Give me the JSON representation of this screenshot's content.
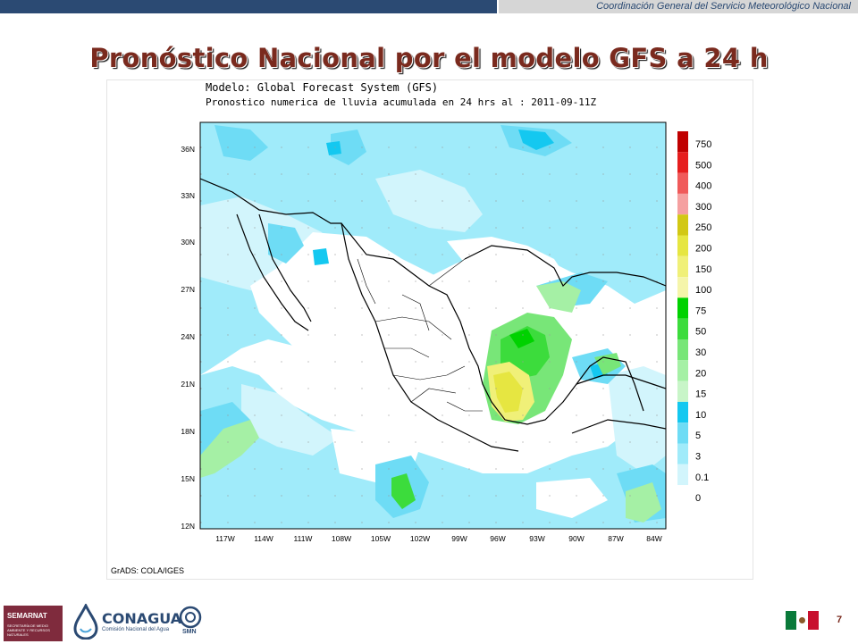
{
  "header": {
    "org_text": "Coordinación General del Servicio Meteorológico Nacional",
    "title": "Pronóstico Nacional por el modelo GFS a 24 h"
  },
  "map": {
    "title_line1": "Modelo: Global Forecast System (GFS)",
    "title_line2": "Pronostico numerica de lluvia acumulada en 24 hrs al : 2011-09-11Z",
    "credit": "GrADS: COLA/IGES",
    "lat_labels": [
      "36N",
      "33N",
      "30N",
      "27N",
      "24N",
      "21N",
      "18N",
      "15N",
      "12N"
    ],
    "lon_labels": [
      "117W",
      "114W",
      "111W",
      "108W",
      "105W",
      "102W",
      "99W",
      "96W",
      "93W",
      "90W",
      "87W",
      "84W"
    ],
    "legend": [
      {
        "label": "750",
        "color": "#c00000"
      },
      {
        "label": "500",
        "color": "#e61e1e"
      },
      {
        "label": "400",
        "color": "#f05a5a"
      },
      {
        "label": "300",
        "color": "#f5a0a0"
      },
      {
        "label": "250",
        "color": "#d2c814"
      },
      {
        "label": "200",
        "color": "#e6e641"
      },
      {
        "label": "150",
        "color": "#f0f078"
      },
      {
        "label": "100",
        "color": "#f5f5aa"
      },
      {
        "label": "75",
        "color": "#00d200"
      },
      {
        "label": "50",
        "color": "#3cdc3c"
      },
      {
        "label": "30",
        "color": "#78e678"
      },
      {
        "label": "20",
        "color": "#a5f0a5"
      },
      {
        "label": "15",
        "color": "#c8f5c8"
      },
      {
        "label": "10",
        "color": "#14c8f0"
      },
      {
        "label": "5",
        "color": "#6edcf5"
      },
      {
        "label": "3",
        "color": "#a0ebfa"
      },
      {
        "label": "0.1",
        "color": "#d2f5fc"
      },
      {
        "label": "0",
        "color": "#ffffff"
      }
    ]
  },
  "footer": {
    "semarnat_label": "SEMARNAT",
    "semarnat_sub": "SECRETARÍA DE MEDIO AMBIENTE Y RECURSOS NATURALES",
    "conagua_label": "CONAGUA",
    "conagua_sub": "Comisión Nacional del Agua",
    "smn_label": "SMN",
    "page_number": "7"
  }
}
